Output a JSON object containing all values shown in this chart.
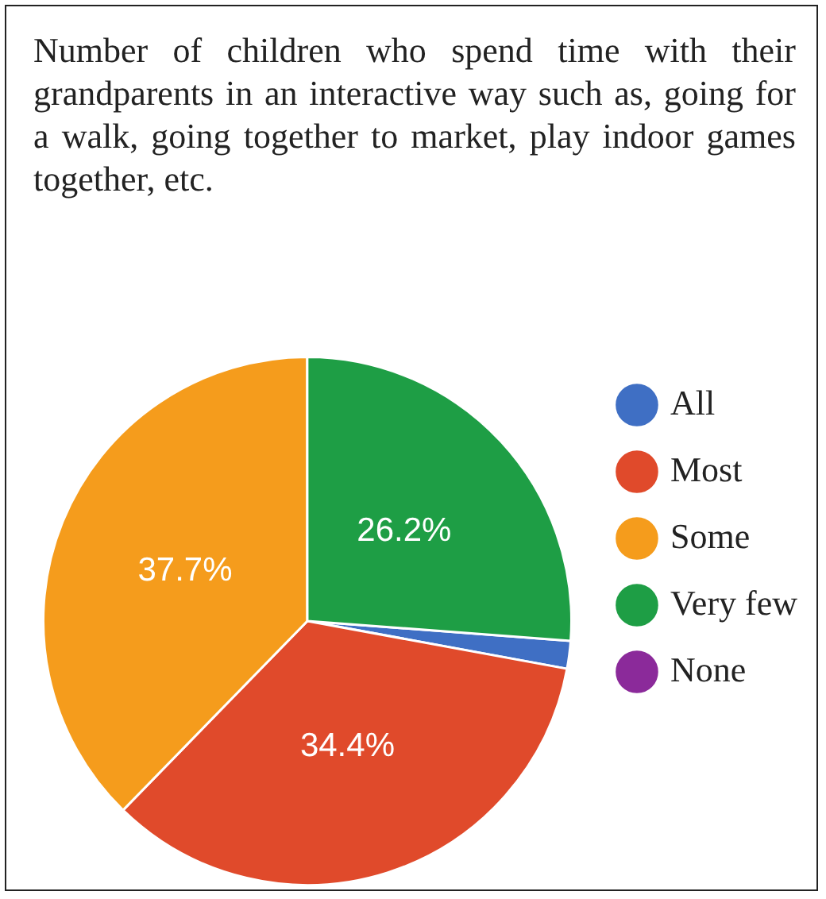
{
  "chart_data": {
    "type": "pie",
    "title": "Number of children who spend time with their grandparents in an interactive way such as, going for a walk, going together to market, play indoor games together, etc.",
    "categories": [
      "All",
      "Most",
      "Some",
      "Very few",
      "None"
    ],
    "values": [
      1.7,
      34.4,
      37.7,
      26.2,
      0
    ],
    "colors": [
      "#3f6fc4",
      "#e04a2b",
      "#f59c1c",
      "#1e9e45",
      "#8b2a9a"
    ],
    "value_labels": [
      null,
      "34.4%",
      "37.7%",
      "26.2%",
      null
    ],
    "legend": "right"
  }
}
